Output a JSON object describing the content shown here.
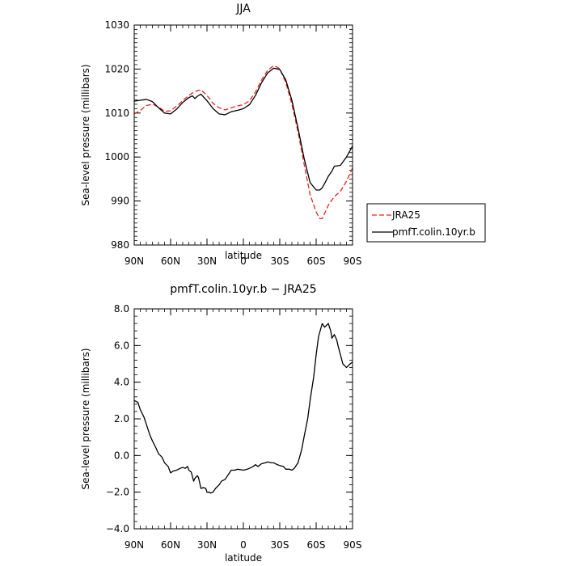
{
  "chart_data": [
    {
      "type": "line",
      "title": "JJA",
      "xlabel": "latitude",
      "ylabel": "Sea-level pressure (millibars)",
      "ylim": [
        980,
        1030
      ],
      "xlim": [
        90,
        -90
      ],
      "x_ticks": [
        {
          "value": 90,
          "label": "90N"
        },
        {
          "value": 60,
          "label": "60N"
        },
        {
          "value": 30,
          "label": "30N"
        },
        {
          "value": 0,
          "label": "0"
        },
        {
          "value": -30,
          "label": "30S"
        },
        {
          "value": -60,
          "label": "60S"
        },
        {
          "value": -90,
          "label": "90S"
        }
      ],
      "y_ticks": [
        {
          "value": 980,
          "label": "980"
        },
        {
          "value": 990,
          "label": "990"
        },
        {
          "value": 1000,
          "label": "1000"
        },
        {
          "value": 1010,
          "label": "1010"
        },
        {
          "value": 1020,
          "label": "1020"
        },
        {
          "value": 1030,
          "label": "1030"
        }
      ],
      "legend_position": "right",
      "series": [
        {
          "name": "JRA25",
          "color": "#e8251f",
          "dashed": true,
          "x": [
            90,
            85,
            80,
            75,
            70,
            65,
            60,
            55,
            50,
            45,
            40,
            35,
            30,
            25,
            20,
            15,
            10,
            5,
            0,
            -5,
            -10,
            -15,
            -20,
            -25,
            -30,
            -35,
            -40,
            -45,
            -50,
            -55,
            -60,
            -63,
            -65,
            -67,
            -70,
            -75,
            -80,
            -85,
            -90
          ],
          "y": [
            1009.8,
            1010.6,
            1011.7,
            1012.0,
            1011.4,
            1010.4,
            1010.5,
            1011.6,
            1012.8,
            1014.0,
            1014.9,
            1015.3,
            1014.0,
            1012.2,
            1011.2,
            1010.7,
            1011.2,
            1011.6,
            1011.9,
            1012.8,
            1014.8,
            1017.5,
            1019.7,
            1020.8,
            1020.1,
            1016.9,
            1012.0,
            1005.8,
            998.5,
            991.5,
            987.5,
            986.0,
            986.0,
            987.2,
            989.0,
            991.0,
            992.2,
            994.5,
            997.5
          ]
        },
        {
          "name": "pmfT.colin.10yr.b",
          "color": "#000000",
          "dashed": false,
          "x": [
            90,
            85,
            80,
            75,
            70,
            65,
            60,
            55,
            50,
            45,
            42,
            40,
            38,
            35,
            30,
            25,
            20,
            15,
            10,
            5,
            0,
            -5,
            -10,
            -15,
            -20,
            -25,
            -30,
            -35,
            -40,
            -45,
            -50,
            -55,
            -60,
            -63,
            -65,
            -67,
            -70,
            -73,
            -75,
            -80,
            -85,
            -90
          ],
          "y": [
            1012.7,
            1012.9,
            1013.1,
            1012.6,
            1011.2,
            1010.0,
            1009.8,
            1010.9,
            1012.4,
            1013.5,
            1013.9,
            1013.3,
            1013.8,
            1014.3,
            1012.8,
            1011.0,
            1009.8,
            1009.6,
            1010.3,
            1010.6,
            1011.0,
            1011.9,
            1014.0,
            1016.9,
            1019.1,
            1020.2,
            1019.9,
            1017.5,
            1012.9,
            1006.6,
            999.8,
            994.2,
            992.5,
            992.5,
            993.0,
            994.0,
            995.6,
            996.8,
            997.9,
            998.1,
            1000.0,
            1002.5
          ]
        }
      ]
    },
    {
      "type": "line",
      "title": "pmfT.colin.10yr.b − JRA25",
      "xlabel": "latitude",
      "ylabel": "Sea-level pressure (millibars)",
      "ylim": [
        -4,
        8
      ],
      "xlim": [
        90,
        -90
      ],
      "x_ticks": [
        {
          "value": 90,
          "label": "90N"
        },
        {
          "value": 60,
          "label": "60N"
        },
        {
          "value": 30,
          "label": "30N"
        },
        {
          "value": 0,
          "label": "0"
        },
        {
          "value": -30,
          "label": "30S"
        },
        {
          "value": -60,
          "label": "60S"
        },
        {
          "value": -90,
          "label": "90S"
        }
      ],
      "y_ticks": [
        {
          "value": -4,
          "label": "−4.0"
        },
        {
          "value": -2,
          "label": "−2.0"
        },
        {
          "value": 0,
          "label": "0.0"
        },
        {
          "value": 2,
          "label": "2.0"
        },
        {
          "value": 4,
          "label": "4.0"
        },
        {
          "value": 6,
          "label": "6.0"
        },
        {
          "value": 8,
          "label": "8.0"
        }
      ],
      "series": [
        {
          "color": "#000000",
          "dashed": false,
          "x": [
            90,
            87,
            85,
            82,
            80,
            77,
            75,
            72,
            70,
            67,
            65,
            62,
            60,
            58,
            55,
            52,
            50,
            48,
            46,
            45,
            43,
            41,
            40,
            38,
            37,
            35,
            33,
            31,
            30,
            28,
            27,
            25,
            23,
            20,
            18,
            15,
            12,
            10,
            7,
            5,
            2,
            0,
            -3,
            -5,
            -8,
            -10,
            -12,
            -15,
            -18,
            -20,
            -23,
            -25,
            -28,
            -30,
            -33,
            -35,
            -38,
            -40,
            -42,
            -45,
            -48,
            -50,
            -53,
            -55,
            -58,
            -60,
            -62,
            -65,
            -67,
            -70,
            -72,
            -73,
            -75,
            -77,
            -78,
            -80,
            -82,
            -85,
            -88,
            -90
          ],
          "y": [
            3.0,
            2.9,
            2.5,
            2.1,
            1.7,
            1.1,
            0.8,
            0.4,
            0.1,
            -0.1,
            -0.4,
            -0.6,
            -0.95,
            -0.85,
            -0.8,
            -0.7,
            -0.65,
            -0.7,
            -0.6,
            -0.8,
            -0.9,
            -1.4,
            -1.25,
            -1.1,
            -1.2,
            -1.8,
            -1.75,
            -1.8,
            -2.0,
            -2.0,
            -2.05,
            -2.0,
            -1.8,
            -1.6,
            -1.4,
            -1.3,
            -1.0,
            -0.8,
            -0.8,
            -0.75,
            -0.78,
            -0.8,
            -0.75,
            -0.7,
            -0.6,
            -0.5,
            -0.6,
            -0.45,
            -0.4,
            -0.35,
            -0.4,
            -0.4,
            -0.5,
            -0.55,
            -0.6,
            -0.75,
            -0.75,
            -0.8,
            -0.7,
            -0.4,
            0.3,
            1.0,
            2.0,
            3.0,
            4.3,
            5.5,
            6.5,
            7.2,
            7.0,
            7.2,
            6.8,
            6.4,
            6.6,
            6.3,
            6.0,
            5.5,
            5.0,
            4.8,
            5.0,
            5.1
          ]
        }
      ]
    }
  ]
}
